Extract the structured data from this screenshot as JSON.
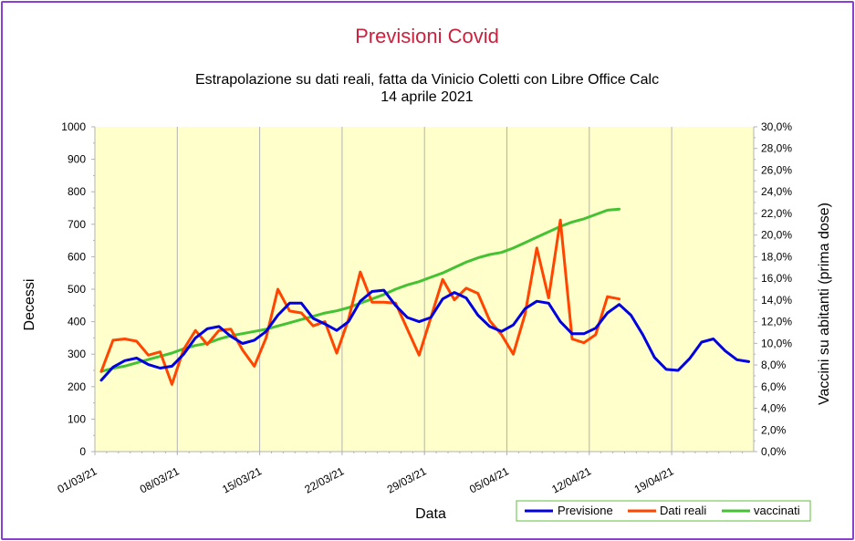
{
  "chart_data": {
    "type": "line",
    "title": "Previsioni Covid",
    "subtitle_line1": "Estrapolazione su dati reali, fatta da Vinicio Coletti con Libre Office Calc",
    "subtitle_line2": "14 aprile 2021",
    "xlabel": "Data",
    "ylabel": "Decessi",
    "y2label": "Vaccini su abitanti (prima dose)",
    "ylim": [
      0,
      1000
    ],
    "y2lim": [
      0,
      30
    ],
    "x_tick_labels": [
      "01/03/21",
      "08/03/21",
      "15/03/21",
      "22/03/21",
      "29/03/21",
      "05/04/21",
      "12/04/21",
      "19/04/21"
    ],
    "y_ticks": [
      "0",
      "100",
      "200",
      "300",
      "400",
      "500",
      "600",
      "700",
      "800",
      "900",
      "1000"
    ],
    "y2_ticks": [
      "0,0%",
      "2,0%",
      "4,0%",
      "6,0%",
      "8,0%",
      "10,0%",
      "12,0%",
      "14,0%",
      "16,0%",
      "18,0%",
      "20,0%",
      "22,0%",
      "24,0%",
      "26,0%",
      "28,0%",
      "30,0%"
    ],
    "grid": true,
    "legend_position": "bottom-right",
    "colors": {
      "plot_bg": "#ffffcc",
      "title": "#c9213e",
      "frame": "#8a3fd0"
    },
    "series": [
      {
        "name": "Previsione",
        "color": "#0000e0",
        "axis": "left",
        "x_start": 0,
        "values": [
          220,
          260,
          280,
          288,
          268,
          257,
          263,
          300,
          350,
          378,
          385,
          355,
          333,
          343,
          370,
          420,
          457,
          457,
          410,
          393,
          373,
          400,
          463,
          493,
          497,
          450,
          413,
          400,
          413,
          470,
          490,
          473,
          420,
          385,
          370,
          390,
          440,
          463,
          457,
          400,
          363,
          363,
          380,
          427,
          453,
          420,
          360,
          290,
          253,
          250,
          287,
          337,
          347,
          310,
          283,
          277
        ]
      },
      {
        "name": "Dati reali",
        "color": "#ff4500",
        "axis": "left",
        "x_start": 0,
        "values": [
          247,
          343,
          347,
          340,
          297,
          307,
          207,
          315,
          373,
          330,
          373,
          377,
          313,
          263,
          350,
          500,
          433,
          427,
          387,
          400,
          303,
          407,
          553,
          460,
          460,
          457,
          377,
          297,
          413,
          530,
          467,
          503,
          487,
          403,
          360,
          300,
          423,
          627,
          473,
          713,
          347,
          335,
          360,
          477,
          470
        ]
      },
      {
        "name": "vaccinati",
        "color": "#44c233",
        "axis": "right",
        "x_start": 0,
        "values": [
          7.4,
          7.7,
          7.9,
          8.2,
          8.5,
          8.8,
          9.1,
          9.5,
          9.8,
          10.0,
          10.4,
          10.7,
          10.9,
          11.1,
          11.3,
          11.6,
          11.9,
          12.2,
          12.5,
          12.8,
          13.0,
          13.3,
          13.7,
          14.1,
          14.5,
          15.0,
          15.4,
          15.7,
          16.1,
          16.5,
          17.0,
          17.5,
          17.9,
          18.2,
          18.4,
          18.8,
          19.3,
          19.8,
          20.3,
          20.8,
          21.2,
          21.5,
          21.9,
          22.3,
          22.4
        ]
      }
    ]
  }
}
